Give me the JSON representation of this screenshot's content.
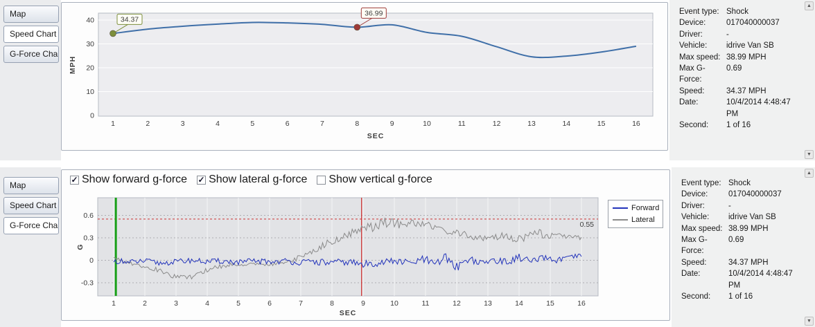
{
  "icons": {
    "scroll_up": "▲",
    "scroll_down": "▼",
    "checkmark": "✓"
  },
  "speed_panel": {
    "tabs": [
      {
        "label": "Map",
        "selected": false
      },
      {
        "label": "Speed Chart",
        "selected": true
      },
      {
        "label": "G-Force Chart",
        "selected": false
      }
    ]
  },
  "gforce_panel": {
    "tabs": [
      {
        "label": "Map",
        "selected": false
      },
      {
        "label": "Speed Chart",
        "selected": false
      },
      {
        "label": "G-Force Chart",
        "selected": true
      }
    ],
    "checkboxes": [
      {
        "label": "Show forward g-force",
        "checked": true
      },
      {
        "label": "Show lateral g-force",
        "checked": true
      },
      {
        "label": "Show vertical g-force",
        "checked": false
      }
    ]
  },
  "info_panel": {
    "rows": [
      {
        "label": "Event type:",
        "value": "Shock"
      },
      {
        "label": "Device:",
        "value": "017040000037"
      },
      {
        "label": "Driver:",
        "value": "-"
      },
      {
        "label": "Vehicle:",
        "value": "idrive Van SB"
      },
      {
        "label": "Max speed:",
        "value": "38.99 MPH"
      },
      {
        "label": "Max G-Force:",
        "value": "0.69"
      },
      {
        "label": "Speed:",
        "value": "34.37 MPH"
      },
      {
        "label": "Date:",
        "value": "10/4/2014 4:48:47 PM"
      },
      {
        "label": "Second:",
        "value": "1 of 16"
      }
    ]
  },
  "chart_data": [
    {
      "type": "line",
      "name": "speed-chart",
      "xlabel": "SEC",
      "ylabel": "MPH",
      "xticks": [
        1,
        2,
        3,
        4,
        5,
        6,
        7,
        8,
        9,
        10,
        11,
        12,
        13,
        14,
        15,
        16
      ],
      "yticks": [
        0,
        10,
        20,
        30,
        40
      ],
      "ytick_labels": [
        "0",
        "10",
        "20",
        "30",
        "40"
      ],
      "ylim": [
        0,
        42
      ],
      "x": [
        1,
        2,
        3,
        4,
        5,
        6,
        7,
        8,
        9,
        10,
        11,
        12,
        13,
        14,
        15,
        16
      ],
      "values": [
        34.37,
        36.2,
        37.4,
        38.3,
        38.99,
        38.8,
        38.2,
        36.99,
        38.0,
        34.8,
        33.2,
        28.8,
        24.6,
        24.9,
        26.6,
        29.0
      ],
      "line_color": "#3f6fa8",
      "annotations": [
        {
          "x": 1,
          "y": 34.37,
          "label": "34.37",
          "color": "#7d8f3c"
        },
        {
          "x": 8,
          "y": 36.99,
          "label": "36.99",
          "color": "#9e3a38"
        }
      ]
    },
    {
      "type": "line",
      "name": "gforce-chart",
      "xlabel": "SEC",
      "ylabel": "G",
      "xticks": [
        1,
        2,
        3,
        4,
        5,
        6,
        7,
        8,
        9,
        10,
        11,
        12,
        13,
        14,
        15,
        16
      ],
      "yticks": [
        -0.3,
        0,
        0.3,
        0.6
      ],
      "ytick_labels": [
        "-0.3",
        "0",
        "0.3",
        "0.6"
      ],
      "ylim": [
        -0.45,
        0.8
      ],
      "threshold": {
        "y": 0.55,
        "label": "0.55",
        "color": "#cc3333"
      },
      "second_marker": {
        "x": 1.07,
        "color": "#18a018"
      },
      "event_marker": {
        "x": 8.95,
        "color": "#cc2222"
      },
      "legend": {
        "position": "top-right",
        "entries": [
          "Forward",
          "Lateral"
        ]
      },
      "series": [
        {
          "name": "Forward",
          "color": "#2233bb",
          "seed": 11,
          "baseline": [
            [
              1,
              0
            ],
            [
              1.5,
              -0.03
            ],
            [
              2,
              -0.01
            ],
            [
              2.5,
              -0.04
            ],
            [
              3,
              -0.02
            ],
            [
              3.5,
              0
            ],
            [
              4,
              -0.02
            ],
            [
              4.5,
              -0.01
            ],
            [
              5,
              -0.03
            ],
            [
              5.5,
              -0.01
            ],
            [
              6,
              -0.02
            ],
            [
              6.5,
              -0.01
            ],
            [
              7,
              -0.03
            ],
            [
              7.5,
              -0.02
            ],
            [
              8,
              -0.04
            ],
            [
              8.5,
              -0.02
            ],
            [
              9,
              -0.06
            ],
            [
              9.5,
              -0.03
            ],
            [
              10,
              -0.01
            ],
            [
              10.5,
              -0.04
            ],
            [
              11,
              0.01
            ],
            [
              11.3,
              -0.08
            ],
            [
              11.6,
              0.05
            ],
            [
              12,
              -0.09
            ],
            [
              12.4,
              0.03
            ],
            [
              12.8,
              -0.05
            ],
            [
              13.2,
              0.01
            ],
            [
              13.6,
              -0.03
            ],
            [
              14,
              0.04
            ],
            [
              14.4,
              -0.02
            ],
            [
              14.8,
              0.03
            ],
            [
              15.2,
              0
            ],
            [
              15.6,
              0.03
            ],
            [
              16,
              0.06
            ]
          ],
          "noise_amp": [
            [
              1,
              0.04
            ],
            [
              3,
              0.035
            ],
            [
              5,
              0.04
            ],
            [
              7,
              0.04
            ],
            [
              8,
              0.05
            ],
            [
              9,
              0.055
            ],
            [
              10,
              0.045
            ],
            [
              11,
              0.065
            ],
            [
              12,
              0.06
            ],
            [
              13,
              0.045
            ],
            [
              14,
              0.05
            ],
            [
              15,
              0.04
            ],
            [
              16,
              0.035
            ]
          ]
        },
        {
          "name": "Lateral",
          "color": "#8a8a8a",
          "seed": 37,
          "baseline": [
            [
              1,
              0.02
            ],
            [
              1.4,
              -0.02
            ],
            [
              1.8,
              -0.06
            ],
            [
              2.2,
              -0.1
            ],
            [
              2.6,
              -0.16
            ],
            [
              3,
              -0.22
            ],
            [
              3.4,
              -0.24
            ],
            [
              3.8,
              -0.16
            ],
            [
              4.2,
              -0.1
            ],
            [
              4.6,
              -0.07
            ],
            [
              5,
              -0.05
            ],
            [
              5.5,
              -0.06
            ],
            [
              6,
              -0.05
            ],
            [
              6.5,
              -0.03
            ],
            [
              7,
              0.04
            ],
            [
              7.4,
              0.12
            ],
            [
              7.8,
              0.22
            ],
            [
              8.2,
              0.28
            ],
            [
              8.5,
              0.33
            ],
            [
              8.8,
              0.4
            ],
            [
              9.1,
              0.46
            ],
            [
              9.4,
              0.44
            ],
            [
              9.7,
              0.5
            ],
            [
              10,
              0.52
            ],
            [
              10.3,
              0.46
            ],
            [
              10.6,
              0.5
            ],
            [
              11,
              0.48
            ],
            [
              11.4,
              0.42
            ],
            [
              11.8,
              0.38
            ],
            [
              12.2,
              0.35
            ],
            [
              12.6,
              0.31
            ],
            [
              13,
              0.28
            ],
            [
              13.4,
              0.33
            ],
            [
              13.8,
              0.29
            ],
            [
              14.2,
              0.3
            ],
            [
              14.5,
              0.4
            ],
            [
              14.8,
              0.33
            ],
            [
              15.2,
              0.31
            ],
            [
              15.6,
              0.33
            ],
            [
              16,
              0.29
            ]
          ],
          "noise_amp": [
            [
              1,
              0.025
            ],
            [
              2.5,
              0.035
            ],
            [
              4,
              0.03
            ],
            [
              6,
              0.025
            ],
            [
              7.5,
              0.04
            ],
            [
              9,
              0.06
            ],
            [
              9.8,
              0.08
            ],
            [
              10.5,
              0.055
            ],
            [
              12,
              0.04
            ],
            [
              13.5,
              0.045
            ],
            [
              14.5,
              0.05
            ],
            [
              16,
              0.035
            ]
          ]
        }
      ]
    }
  ]
}
